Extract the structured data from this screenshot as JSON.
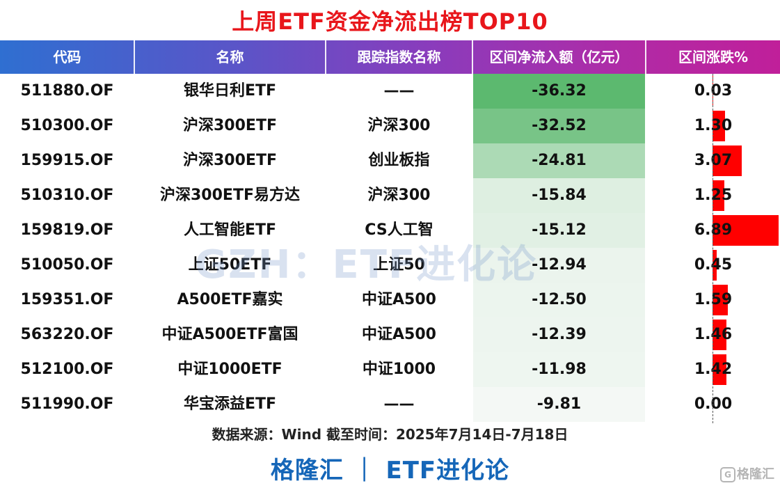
{
  "title": "上周ETF资金净流出榜TOP10",
  "headers": {
    "code": "代码",
    "name": "名称",
    "index": "跟踪指数名称",
    "flow": "区间净流入额（亿元）",
    "change": "区间涨跌%"
  },
  "rows": [
    {
      "code": "511880.OF",
      "name": "银华日利ETF",
      "index": "——",
      "flow": "-36.32",
      "change": "0.03"
    },
    {
      "code": "510300.OF",
      "name": "沪深300ETF",
      "index": "沪深300",
      "flow": "-32.52",
      "change": "1.30"
    },
    {
      "code": "159915.OF",
      "name": "沪深300ETF",
      "index": "创业板指",
      "flow": "-24.81",
      "change": "3.07"
    },
    {
      "code": "510310.OF",
      "name": "沪深300ETF易方达",
      "index": "沪深300",
      "flow": "-15.84",
      "change": "1.25"
    },
    {
      "code": "159819.OF",
      "name": "人工智能ETF",
      "index": "CS人工智",
      "flow": "-15.12",
      "change": "6.89"
    },
    {
      "code": "510050.OF",
      "name": "上证50ETF",
      "index": "上证50",
      "flow": "-12.94",
      "change": "0.45"
    },
    {
      "code": "159351.OF",
      "name": "A500ETF嘉实",
      "index": "中证A500",
      "flow": "-12.50",
      "change": "1.59"
    },
    {
      "code": "563220.OF",
      "name": "中证A500ETF富国",
      "index": "中证A500",
      "flow": "-12.39",
      "change": "1.46"
    },
    {
      "code": "512100.OF",
      "name": "中证1000ETF",
      "index": "中证1000",
      "flow": "-11.98",
      "change": "1.42"
    },
    {
      "code": "511990.OF",
      "name": "华宝添益ETF",
      "index": "——",
      "flow": "-9.81",
      "change": "0.00"
    }
  ],
  "chart_data": {
    "type": "table",
    "title": "上周ETF资金净流出榜TOP10",
    "columns": [
      "代码",
      "名称",
      "跟踪指数名称",
      "区间净流入额（亿元）",
      "区间涨跌%"
    ],
    "flow_values": [
      -36.32,
      -32.52,
      -24.81,
      -15.84,
      -15.12,
      -12.94,
      -12.5,
      -12.39,
      -11.98,
      -9.81
    ],
    "change_values": [
      0.03,
      1.3,
      3.07,
      1.25,
      6.89,
      0.45,
      1.59,
      1.46,
      1.42,
      0.0
    ],
    "flow_color_scale": [
      "#f4f8f5",
      "#5cb96f"
    ],
    "change_bar_color": "#ff0000"
  },
  "watermark": "GZH：ETF进化论",
  "source": "数据来源：Wind 截至时间：2025年7月14日-7月18日",
  "footer": "格隆汇 ｜ ETF进化论",
  "corner_logo": "格隆汇",
  "corner_logo_icon": "G"
}
